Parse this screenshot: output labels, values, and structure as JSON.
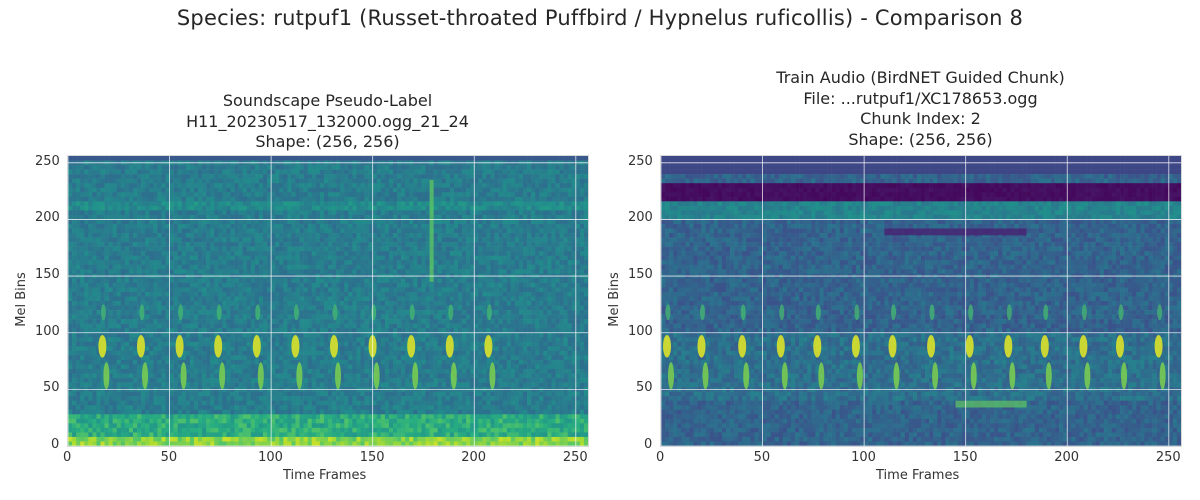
{
  "suptitle": "Species: rutpuf1 (Russet-throated Puffbird / Hypnelus ruficollis) - Comparison 8",
  "panels": [
    {
      "title_lines": [
        "Soundscape Pseudo-Label",
        "H11_20230517_132000.ogg_21_24",
        "Shape: (256, 256)"
      ]
    },
    {
      "title_lines": [
        "Train Audio (BirdNET Guided Chunk)",
        "File: ...rutpuf1/XC178653.ogg",
        "Chunk Index: 2",
        "Shape: (256, 256)"
      ]
    }
  ],
  "chart_data": [
    {
      "type": "heatmap",
      "title": "Soundscape Pseudo-Label\nH11_20230517_132000.ogg_21_24\nShape: (256, 256)",
      "xlabel": "Time Frames",
      "ylabel": "Mel Bins",
      "xlim": [
        0,
        256
      ],
      "ylim": [
        0,
        256
      ],
      "xticks": [
        0,
        50,
        100,
        150,
        200,
        250
      ],
      "yticks": [
        0,
        50,
        100,
        150,
        200,
        250
      ],
      "grid": true,
      "colormap": "viridis",
      "shape": [
        256,
        256
      ]
    },
    {
      "type": "heatmap",
      "title": "Train Audio (BirdNET Guided Chunk)\nFile: ...rutpuf1/XC178653.ogg\nChunk Index: 2\nShape: (256, 256)",
      "xlabel": "Time Frames",
      "ylabel": "Mel Bins",
      "xlim": [
        0,
        256
      ],
      "ylim": [
        0,
        256
      ],
      "xticks": [
        0,
        50,
        100,
        150,
        200,
        250
      ],
      "yticks": [
        0,
        50,
        100,
        150,
        200,
        250
      ],
      "grid": true,
      "colormap": "viridis",
      "shape": [
        256,
        256
      ]
    }
  ],
  "colors": {
    "grid": "#ffffff",
    "axes_edge": "#d8d8d8",
    "text": "#262626"
  }
}
